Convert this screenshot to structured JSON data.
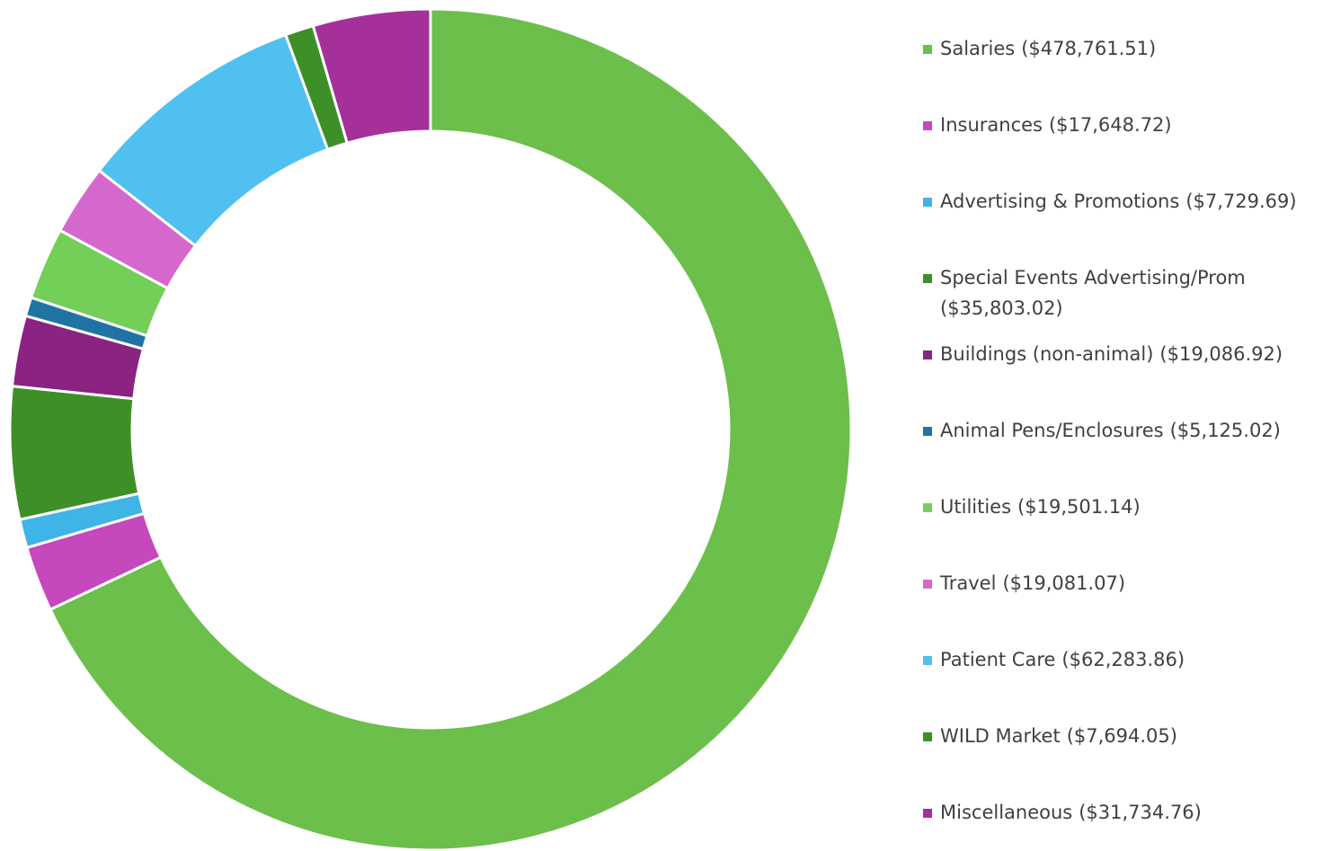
{
  "chart_data": {
    "type": "donut",
    "categories": [
      "Salaries",
      "Insurances",
      "Advertising & Promotions",
      "Special Events Advertising/Prom",
      "Buildings (non-animal)",
      "Animal Pens/Enclosures",
      "Utilities",
      "Travel",
      "Patient Care",
      "WILD Market",
      "Miscellaneous"
    ],
    "values": [
      478761.51,
      17648.72,
      7729.69,
      35803.02,
      19086.92,
      5125.02,
      19501.14,
      19081.07,
      62283.86,
      7694.05,
      31734.76
    ],
    "value_labels": [
      "($478,761.51)",
      "($17,648.72)",
      "($7,729.69)",
      "($35,803.02)",
      "($19,086.92)",
      "($5,125.02)",
      "($19,501.14)",
      "($19,081.07)",
      "($62,283.86)",
      "($7,694.05)",
      "($31,734.76)"
    ],
    "colors": [
      "#6cbf4a",
      "#c548bd",
      "#3fb4e6",
      "#3f8f28",
      "#8a2381",
      "#1f74a3",
      "#74cf58",
      "#d568cd",
      "#4fc0ef",
      "#3f8f28",
      "#a5309a"
    ],
    "legend": "right"
  }
}
